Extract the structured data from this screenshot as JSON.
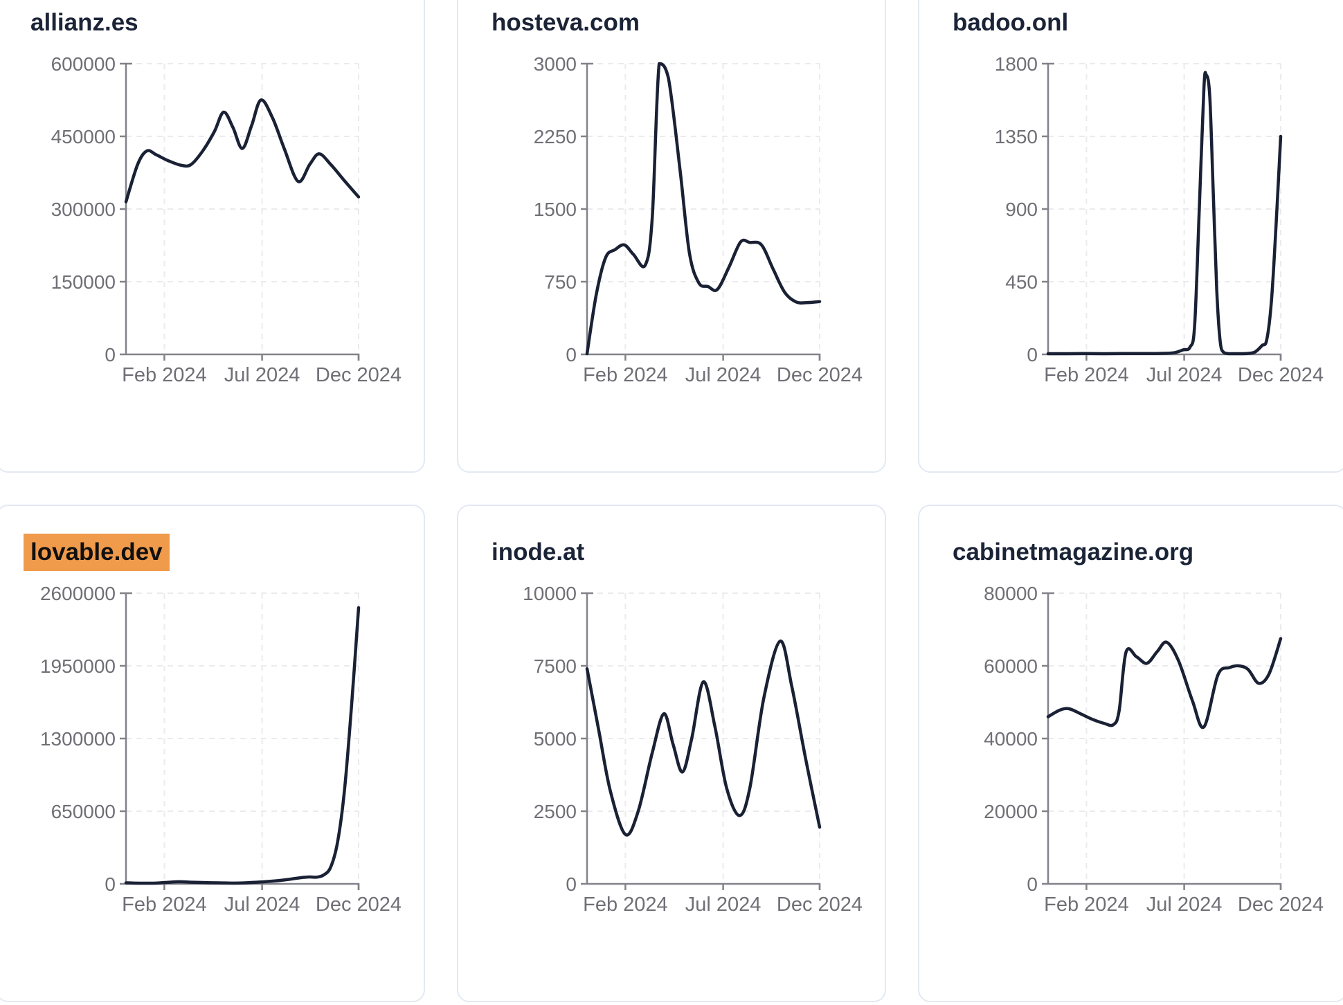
{
  "page": {
    "background": "#ffffff",
    "description": "Dashboard grid of six website-traffic sparkline cards for year 2024"
  },
  "theme": {
    "line_color": "#1a2135",
    "title_color": "#1b2437",
    "tick_label_color": "#6f6f76",
    "axis_color": "#82828a",
    "grid_color": "#ebebee",
    "card_border_color": "#e3e9f3",
    "highlight_background": "#f09a4b",
    "highlight_text_color": "#101010"
  },
  "chart_data": [
    {
      "type": "line",
      "title": "allianz.es",
      "highlighted": false,
      "xlabel": "",
      "ylabel": "",
      "x_ticks": [
        "Feb 2024",
        "Jul 2024",
        "Dec 2024"
      ],
      "x_tick_positions": [
        0.165,
        0.585,
        1.0
      ],
      "y_ticks": [
        0,
        150000,
        300000,
        450000,
        600000
      ],
      "ylim": [
        0,
        600000
      ],
      "grid": true,
      "legend": "none",
      "points": [
        [
          0,
          315000
        ],
        [
          0.05,
          392000
        ],
        [
          0.09,
          420000
        ],
        [
          0.13,
          412000
        ],
        [
          0.18,
          400000
        ],
        [
          0.24,
          390000
        ],
        [
          0.28,
          392000
        ],
        [
          0.33,
          420000
        ],
        [
          0.38,
          460000
        ],
        [
          0.42,
          500000
        ],
        [
          0.46,
          468000
        ],
        [
          0.5,
          425000
        ],
        [
          0.54,
          472000
        ],
        [
          0.58,
          525000
        ],
        [
          0.63,
          488000
        ],
        [
          0.68,
          425000
        ],
        [
          0.74,
          357000
        ],
        [
          0.79,
          392000
        ],
        [
          0.83,
          414000
        ],
        [
          0.88,
          392000
        ],
        [
          0.94,
          358000
        ],
        [
          1,
          325000
        ]
      ]
    },
    {
      "type": "line",
      "title": "hosteva.com",
      "highlighted": false,
      "xlabel": "",
      "ylabel": "",
      "x_ticks": [
        "Feb 2024",
        "Jul 2024",
        "Dec 2024"
      ],
      "x_tick_positions": [
        0.165,
        0.585,
        1.0
      ],
      "y_ticks": [
        0,
        750,
        1500,
        2250,
        3000
      ],
      "ylim": [
        0,
        3000
      ],
      "grid": true,
      "legend": "none",
      "points": [
        [
          0,
          0
        ],
        [
          0.04,
          620
        ],
        [
          0.08,
          1000
        ],
        [
          0.12,
          1080
        ],
        [
          0.16,
          1130
        ],
        [
          0.2,
          1030
        ],
        [
          0.25,
          920
        ],
        [
          0.28,
          1400
        ],
        [
          0.31,
          3000
        ],
        [
          0.35,
          2850
        ],
        [
          0.4,
          1900
        ],
        [
          0.44,
          1050
        ],
        [
          0.48,
          740
        ],
        [
          0.52,
          700
        ],
        [
          0.56,
          670
        ],
        [
          0.61,
          900
        ],
        [
          0.66,
          1160
        ],
        [
          0.7,
          1155
        ],
        [
          0.75,
          1130
        ],
        [
          0.8,
          880
        ],
        [
          0.85,
          640
        ],
        [
          0.9,
          540
        ],
        [
          0.95,
          535
        ],
        [
          1,
          545
        ]
      ]
    },
    {
      "type": "line",
      "title": "badoo.onl",
      "highlighted": false,
      "xlabel": "",
      "ylabel": "",
      "x_ticks": [
        "Feb 2024",
        "Jul 2024",
        "Dec 2024"
      ],
      "x_tick_positions": [
        0.165,
        0.585,
        1.0
      ],
      "y_ticks": [
        0,
        450,
        900,
        1350,
        1800
      ],
      "ylim": [
        0,
        1800
      ],
      "grid": true,
      "legend": "none",
      "points": [
        [
          0,
          4
        ],
        [
          0.08,
          4
        ],
        [
          0.16,
          5
        ],
        [
          0.24,
          4
        ],
        [
          0.32,
          5
        ],
        [
          0.4,
          5
        ],
        [
          0.48,
          6
        ],
        [
          0.54,
          10
        ],
        [
          0.58,
          28
        ],
        [
          0.61,
          45
        ],
        [
          0.63,
          180
        ],
        [
          0.65,
          900
        ],
        [
          0.67,
          1650
        ],
        [
          0.68,
          1730
        ],
        [
          0.695,
          1600
        ],
        [
          0.71,
          1000
        ],
        [
          0.725,
          400
        ],
        [
          0.74,
          80
        ],
        [
          0.755,
          12
        ],
        [
          0.78,
          4
        ],
        [
          0.82,
          4
        ],
        [
          0.86,
          6
        ],
        [
          0.89,
          15
        ],
        [
          0.92,
          55
        ],
        [
          0.94,
          90
        ],
        [
          0.96,
          330
        ],
        [
          0.98,
          800
        ],
        [
          1,
          1350
        ]
      ]
    },
    {
      "type": "line",
      "title": "lovable.dev",
      "highlighted": true,
      "xlabel": "",
      "ylabel": "",
      "x_ticks": [
        "Feb 2024",
        "Jul 2024",
        "Dec 2024"
      ],
      "x_tick_positions": [
        0.165,
        0.585,
        1.0
      ],
      "y_ticks": [
        0,
        650000,
        1300000,
        1950000,
        2600000
      ],
      "ylim": [
        0,
        2600000
      ],
      "grid": true,
      "legend": "none",
      "points": [
        [
          0,
          9000
        ],
        [
          0.06,
          6000
        ],
        [
          0.12,
          5000
        ],
        [
          0.18,
          14000
        ],
        [
          0.23,
          19000
        ],
        [
          0.28,
          15000
        ],
        [
          0.34,
          12000
        ],
        [
          0.4,
          9000
        ],
        [
          0.46,
          7000
        ],
        [
          0.52,
          10000
        ],
        [
          0.58,
          17000
        ],
        [
          0.64,
          26000
        ],
        [
          0.7,
          40000
        ],
        [
          0.75,
          55000
        ],
        [
          0.79,
          62000
        ],
        [
          0.82,
          60000
        ],
        [
          0.85,
          80000
        ],
        [
          0.88,
          150000
        ],
        [
          0.91,
          380000
        ],
        [
          0.94,
          850000
        ],
        [
          0.97,
          1600000
        ],
        [
          1,
          2470000
        ]
      ]
    },
    {
      "type": "line",
      "title": "inode.at",
      "highlighted": false,
      "xlabel": "",
      "ylabel": "",
      "x_ticks": [
        "Feb 2024",
        "Jul 2024",
        "Dec 2024"
      ],
      "x_tick_positions": [
        0.165,
        0.585,
        1.0
      ],
      "y_ticks": [
        0,
        2500,
        5000,
        7500,
        10000
      ],
      "ylim": [
        0,
        10000
      ],
      "grid": true,
      "legend": "none",
      "points": [
        [
          0,
          7400
        ],
        [
          0.05,
          5300
        ],
        [
          0.1,
          3200
        ],
        [
          0.165,
          1700
        ],
        [
          0.22,
          2500
        ],
        [
          0.28,
          4500
        ],
        [
          0.33,
          5850
        ],
        [
          0.37,
          4800
        ],
        [
          0.41,
          3850
        ],
        [
          0.45,
          5000
        ],
        [
          0.5,
          6950
        ],
        [
          0.55,
          5400
        ],
        [
          0.6,
          3300
        ],
        [
          0.655,
          2350
        ],
        [
          0.7,
          3300
        ],
        [
          0.76,
          6400
        ],
        [
          0.83,
          8350
        ],
        [
          0.88,
          6800
        ],
        [
          0.94,
          4300
        ],
        [
          1,
          1950
        ]
      ]
    },
    {
      "type": "line",
      "title": "cabinetmagazine.org",
      "highlighted": false,
      "xlabel": "",
      "ylabel": "",
      "x_ticks": [
        "Feb 2024",
        "Jul 2024",
        "Dec 2024"
      ],
      "x_tick_positions": [
        0.165,
        0.585,
        1.0
      ],
      "y_ticks": [
        0,
        20000,
        40000,
        60000,
        80000
      ],
      "ylim": [
        0,
        80000
      ],
      "grid": true,
      "legend": "none",
      "points": [
        [
          0,
          46000
        ],
        [
          0.05,
          47800
        ],
        [
          0.09,
          48200
        ],
        [
          0.14,
          46800
        ],
        [
          0.19,
          45300
        ],
        [
          0.24,
          44200
        ],
        [
          0.28,
          43800
        ],
        [
          0.305,
          47500
        ],
        [
          0.335,
          63800
        ],
        [
          0.38,
          62500
        ],
        [
          0.425,
          60700
        ],
        [
          0.47,
          64000
        ],
        [
          0.51,
          66500
        ],
        [
          0.56,
          61500
        ],
        [
          0.62,
          50500
        ],
        [
          0.67,
          43200
        ],
        [
          0.73,
          57500
        ],
        [
          0.78,
          59500
        ],
        [
          0.82,
          60000
        ],
        [
          0.86,
          59000
        ],
        [
          0.905,
          55200
        ],
        [
          0.95,
          57800
        ],
        [
          1,
          67500
        ]
      ]
    }
  ]
}
